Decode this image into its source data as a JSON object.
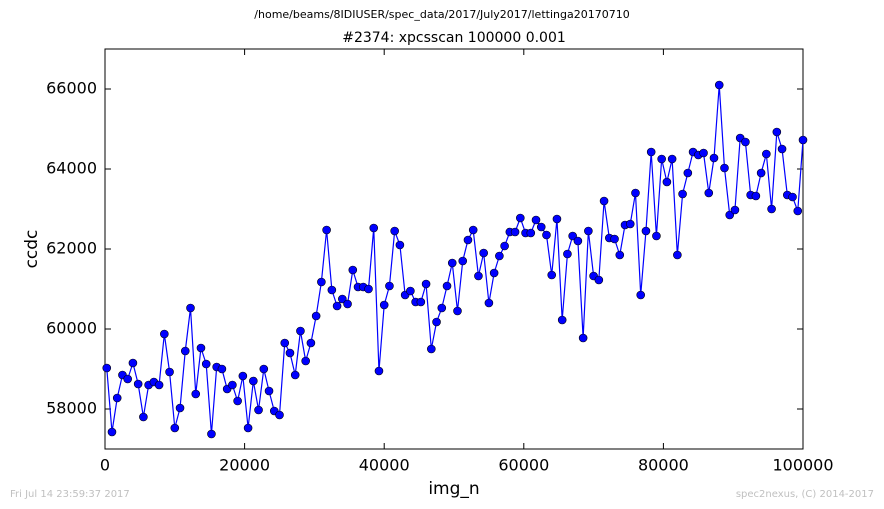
{
  "chart_data": {
    "type": "line",
    "suptitle": "/home/beams/8IDIUSER/spec_data/2017/July2017/lettinga20170710",
    "title": "#2374: xpcsscan 100000 0.001",
    "xlabel": "img_n",
    "ylabel": "ccdc",
    "footer_left": "Fri Jul 14 23:59:37 2017",
    "footer_right": "spec2nexus, (C) 2014-2017",
    "xlim": [
      0,
      100000
    ],
    "ylim": [
      57000,
      67000
    ],
    "xticks": [
      0,
      20000,
      40000,
      60000,
      80000,
      100000
    ],
    "yticks": [
      58000,
      60000,
      62000,
      64000,
      66000
    ],
    "x": [
      250,
      1000,
      1750,
      2500,
      3250,
      4000,
      4750,
      5500,
      6250,
      7000,
      7750,
      8500,
      9250,
      10000,
      10750,
      11500,
      12250,
      13000,
      13750,
      14500,
      15250,
      16000,
      16750,
      17500,
      18250,
      19000,
      19750,
      20500,
      21250,
      22000,
      22750,
      23500,
      24250,
      25000,
      25750,
      26500,
      27250,
      28000,
      28750,
      29500,
      30250,
      31000,
      31750,
      32500,
      33250,
      34000,
      34750,
      35500,
      36250,
      37000,
      37750,
      38500,
      39250,
      40000,
      40750,
      41500,
      42250,
      43000,
      43750,
      44500,
      45250,
      46000,
      46750,
      47500,
      48250,
      49000,
      49750,
      50500,
      51250,
      52000,
      52750,
      53500,
      54250,
      55000,
      55750,
      56500,
      57250,
      58000,
      58750,
      59500,
      60250,
      61000,
      61750,
      62500,
      63250,
      64000,
      64750,
      65500,
      66250,
      67000,
      67750,
      68500,
      69250,
      70000,
      70750,
      71500,
      72250,
      73000,
      73750,
      74500,
      75250,
      76000,
      76750,
      77500,
      78250,
      79000,
      79750,
      80500,
      81250,
      82000,
      82750,
      83500,
      84250,
      85000,
      85750,
      86500,
      87250,
      88000,
      88750,
      89500,
      90250,
      91000,
      91750,
      92500,
      93250,
      94000,
      94750,
      95500,
      96250,
      97000,
      97750,
      98500,
      99250,
      100000
    ],
    "series": [
      {
        "color": "#0000ff",
        "values": [
          59025,
          57425,
          58275,
          58850,
          58750,
          59150,
          58625,
          57800,
          58600,
          58675,
          58600,
          59875,
          58925,
          57525,
          58025,
          59450,
          60525,
          58375,
          59525,
          59125,
          57375,
          59050,
          59000,
          58500,
          58600,
          58200,
          58825,
          57525,
          58700,
          57975,
          59000,
          58450,
          57950,
          57850,
          59650,
          59400,
          58850,
          59950,
          59200,
          59650,
          60325,
          61175,
          62475,
          60975,
          60575,
          60750,
          60625,
          61475,
          61050,
          61050,
          61000,
          62525,
          58950,
          60600,
          61075,
          62450,
          62100,
          60850,
          60950,
          60675,
          60675,
          61125,
          59500,
          60175,
          60525,
          61075,
          61650,
          60450,
          61700,
          62225,
          62475,
          61325,
          61900,
          60650,
          61400,
          61825,
          62075,
          62425,
          62425,
          62775,
          62400,
          62400,
          62725,
          62550,
          62350,
          61350,
          62750,
          60225,
          61875,
          62325,
          62200,
          59775,
          62450,
          61325,
          61225,
          63200,
          62275,
          62250,
          61850,
          62600,
          62625,
          63400,
          60850,
          62450,
          64425,
          62325,
          64250,
          63675,
          64250,
          61850,
          63375,
          63900,
          64425,
          64350,
          64400,
          63400,
          64275,
          66100,
          64025,
          62850,
          62975,
          64775,
          64675,
          63350,
          63325,
          63900,
          64375,
          63000,
          64925,
          64500,
          63350,
          63300,
          62950,
          64725
        ]
      }
    ]
  }
}
